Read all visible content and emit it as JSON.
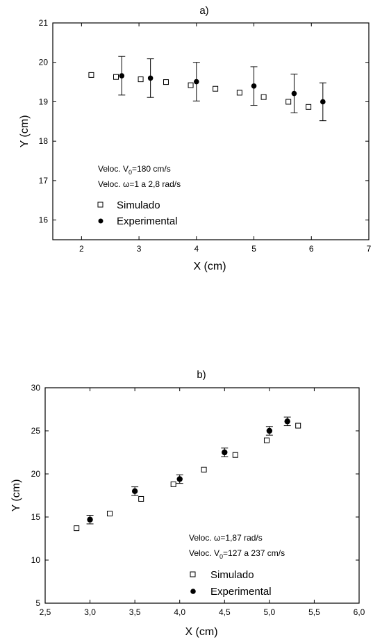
{
  "chart_data": [
    {
      "type": "scatter",
      "title": "a)",
      "xlabel": "X (cm)",
      "ylabel": "Y (cm)",
      "xlim": [
        1.5,
        7
      ],
      "ylim": [
        15.5,
        21
      ],
      "xticks": [
        "2",
        "3",
        "4",
        "5",
        "6",
        "7"
      ],
      "yticks": [
        "16",
        "17",
        "18",
        "19",
        "20",
        "21"
      ],
      "annotation": {
        "line1": {
          "pre": "Veloc. V",
          "sub": "0",
          "post": "=180 cm/s"
        },
        "line2": "Veloc. ω=1 a 2,8 rad/s"
      },
      "series": [
        {
          "name": "Simulado",
          "marker": "open-square",
          "x": [
            2.17,
            2.6,
            3.03,
            3.47,
            3.9,
            4.33,
            4.75,
            5.17,
            5.6,
            5.95
          ],
          "y": [
            19.68,
            19.63,
            19.57,
            19.5,
            19.42,
            19.33,
            19.23,
            19.12,
            19.0,
            18.87
          ]
        },
        {
          "name": "Experimental",
          "marker": "filled-circle",
          "x": [
            2.7,
            3.2,
            4.0,
            5.0,
            5.7,
            6.2
          ],
          "y": [
            19.66,
            19.6,
            19.51,
            19.4,
            19.21,
            19.0
          ],
          "err": [
            0.49,
            0.49,
            0.49,
            0.49,
            0.49,
            0.48
          ]
        }
      ]
    },
    {
      "type": "scatter",
      "title": "b)",
      "xlabel": "X (cm)",
      "ylabel": "Y (cm)",
      "xlim": [
        2.5,
        6.0
      ],
      "ylim": [
        5,
        30
      ],
      "xticks": [
        "2,5",
        "3,0",
        "3,5",
        "4,0",
        "4,5",
        "5,0",
        "5,5",
        "6,0"
      ],
      "yticks": [
        "5",
        "10",
        "15",
        "20",
        "25",
        "30"
      ],
      "annotation": {
        "line1": "Veloc. ω=1,87 rad/s",
        "line2": {
          "pre": "Veloc. V",
          "sub": "0",
          "post": "=127 a 237 cm/s"
        }
      },
      "series": [
        {
          "name": "Simulado",
          "marker": "open-square",
          "x": [
            2.85,
            3.22,
            3.57,
            3.93,
            4.27,
            4.62,
            4.97,
            5.32
          ],
          "y": [
            13.7,
            15.4,
            17.1,
            18.8,
            20.5,
            22.2,
            23.9,
            25.6
          ]
        },
        {
          "name": "Experimental",
          "marker": "filled-circle",
          "x": [
            3.0,
            3.5,
            4.0,
            4.5,
            5.0,
            5.2
          ],
          "y": [
            14.7,
            18.0,
            19.4,
            22.5,
            25.0,
            26.1
          ],
          "err": [
            0.5,
            0.5,
            0.5,
            0.5,
            0.5,
            0.5
          ]
        }
      ]
    }
  ]
}
